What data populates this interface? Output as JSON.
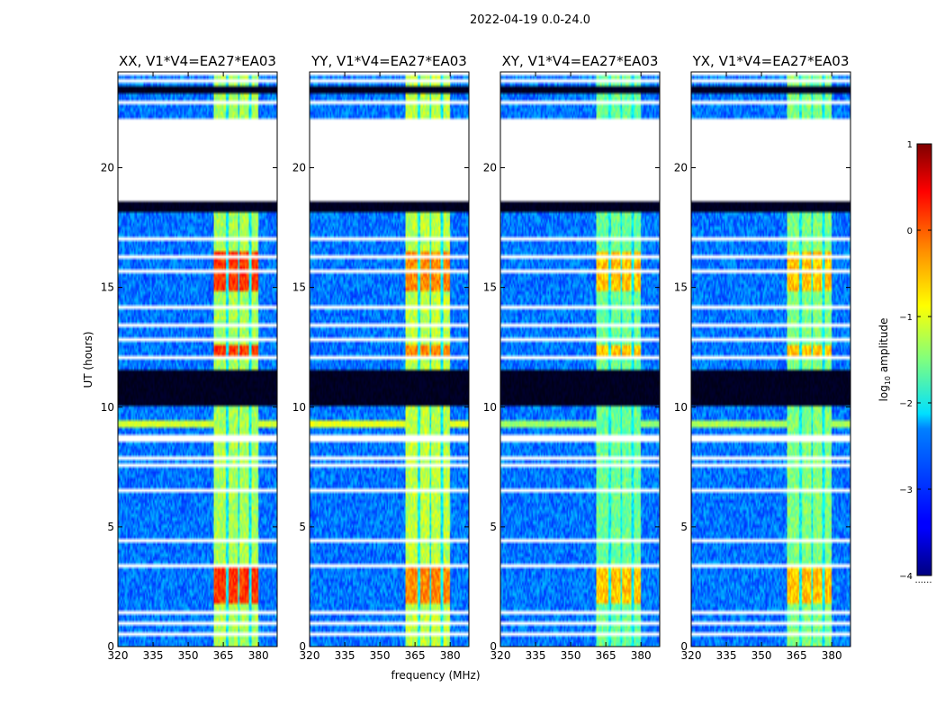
{
  "chart_data": {
    "type": "heatmap",
    "suptitle": "2022-04-19 0.0-24.0",
    "xlabel": "frequency (MHz)",
    "ylabel": "UT (hours)",
    "xlim": [
      320,
      388
    ],
    "ylim": [
      0,
      24
    ],
    "xticks": [
      320,
      335,
      350,
      365,
      380
    ],
    "yticks": [
      0,
      5,
      10,
      15,
      20
    ],
    "colormap": "jet",
    "colorbar": {
      "label": "log10 amplitude",
      "label_main": "log",
      "label_sub": "10",
      "label_rest": " amplitude",
      "range": [
        -4,
        1
      ],
      "ticks": [
        1,
        0,
        -1,
        -2,
        -3,
        -4
      ],
      "tick_labels": [
        "1",
        "0",
        "−1",
        "−2",
        "−3",
        "−4"
      ],
      "footnote": "......"
    },
    "panels": [
      {
        "polarization": "XX",
        "title": "XX, V1*V4=EA27*EA03",
        "rfi_level": -0.7,
        "strong_level": 0.1
      },
      {
        "polarization": "YY",
        "title": "YY, V1*V4=EA27*EA03",
        "rfi_level": -0.6,
        "strong_level": -0.3
      },
      {
        "polarization": "XY",
        "title": "XY, V1*V4=EA27*EA03",
        "rfi_level": -1.0,
        "strong_level": -0.6
      },
      {
        "polarization": "YX",
        "title": "YX, V1*V4=EA27*EA03",
        "rfi_level": -0.9,
        "strong_level": -0.6
      }
    ],
    "background_level": -2.8,
    "rfi_band_mhz": [
      361,
      380
    ],
    "rfi_channels_mhz": [
      [
        361,
        366
      ],
      [
        367,
        371
      ],
      [
        372,
        376
      ],
      [
        377,
        380
      ]
    ],
    "no_data_ut": [
      [
        18.6,
        22.1
      ]
    ],
    "flagged_ut_dark": [
      [
        18.1,
        18.6
      ],
      [
        23.15,
        23.4
      ],
      [
        10.1,
        11.6
      ]
    ],
    "flagged_ut_white": [
      [
        0.45,
        0.55
      ],
      [
        0.95,
        1.1
      ],
      [
        1.35,
        1.55
      ],
      [
        3.35,
        3.45
      ],
      [
        4.35,
        4.55
      ],
      [
        6.45,
        6.55
      ],
      [
        7.3,
        7.4
      ],
      [
        7.55,
        7.65
      ],
      [
        7.85,
        7.95
      ],
      [
        8.55,
        8.65
      ],
      [
        8.75,
        8.85
      ],
      [
        12.0,
        12.1
      ],
      [
        12.75,
        12.85
      ],
      [
        13.35,
        13.45
      ],
      [
        14.1,
        14.25
      ],
      [
        15.1,
        15.2
      ],
      [
        15.6,
        15.7
      ],
      [
        16.2,
        16.3
      ],
      [
        16.9,
        17.05
      ],
      [
        17.35,
        17.45
      ],
      [
        22.65,
        22.75
      ],
      [
        23.55,
        23.65
      ],
      [
        23.85,
        23.95
      ]
    ],
    "bright_ut": [
      [
        1.8,
        3.4
      ],
      [
        12.1,
        12.6
      ],
      [
        14.8,
        16.5
      ]
    ],
    "broadband_ut": [
      [
        9.1,
        9.5
      ]
    ]
  }
}
